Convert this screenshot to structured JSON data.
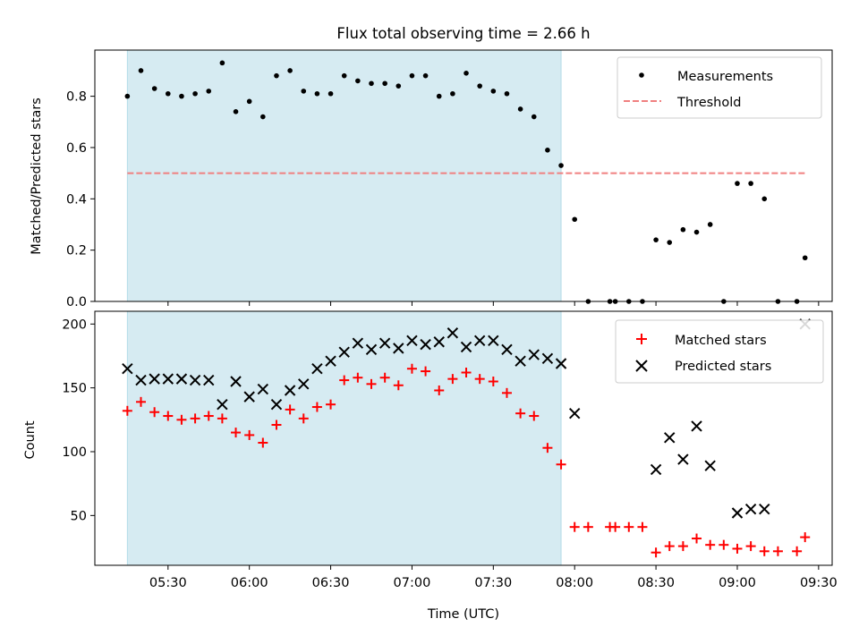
{
  "chart_data": [
    {
      "type": "scatter",
      "title": "Flux total observing time = 2.66 h",
      "xlabel": "",
      "ylabel": "Matched/Predicted stars",
      "ylim": [
        0,
        0.98
      ],
      "yticks": [
        0.0,
        0.2,
        0.4,
        0.6,
        0.8
      ],
      "ytick_labels": [
        "0.0",
        "0.2",
        "0.4",
        "0.6",
        "0.8"
      ],
      "shaded_span": {
        "start": "05:15",
        "end": "07:55",
        "color": "#add8e6"
      },
      "legend_position": "top-right",
      "series": [
        {
          "name": "Measurements",
          "marker": "dot",
          "color": "#000000",
          "x": [
            "05:15",
            "05:20",
            "05:25",
            "05:30",
            "05:35",
            "05:40",
            "05:45",
            "05:50",
            "05:55",
            "06:00",
            "06:05",
            "06:10",
            "06:15",
            "06:20",
            "06:25",
            "06:30",
            "06:35",
            "06:40",
            "06:45",
            "06:50",
            "06:55",
            "07:00",
            "07:05",
            "07:10",
            "07:15",
            "07:20",
            "07:25",
            "07:30",
            "07:35",
            "07:40",
            "07:45",
            "07:50",
            "07:55",
            "08:00",
            "08:05",
            "08:13",
            "08:15",
            "08:20",
            "08:25",
            "08:30",
            "08:35",
            "08:40",
            "08:45",
            "08:50",
            "08:55",
            "09:00",
            "09:05",
            "09:10",
            "09:15",
            "09:22",
            "09:25"
          ],
          "y": [
            0.8,
            0.9,
            0.83,
            0.81,
            0.8,
            0.81,
            0.82,
            0.93,
            0.74,
            0.78,
            0.72,
            0.88,
            0.9,
            0.82,
            0.81,
            0.81,
            0.88,
            0.86,
            0.85,
            0.85,
            0.84,
            0.88,
            0.88,
            0.8,
            0.81,
            0.89,
            0.84,
            0.82,
            0.81,
            0.75,
            0.72,
            0.59,
            0.53,
            0.32,
            0.0,
            0.0,
            0.0,
            0.0,
            0.0,
            0.24,
            0.23,
            0.28,
            0.27,
            0.3,
            0.0,
            0.46,
            0.46,
            0.4,
            0.0,
            0.0,
            0.17
          ]
        },
        {
          "name": "Threshold",
          "marker": "dashed-line",
          "color": "#f08080",
          "x": [
            "05:15",
            "09:25"
          ],
          "y": [
            0.5,
            0.5
          ]
        }
      ]
    },
    {
      "type": "scatter",
      "title": "",
      "xlabel": "Time (UTC)",
      "ylabel": "Count",
      "ylim": [
        11,
        210
      ],
      "yticks": [
        50,
        100,
        150,
        200
      ],
      "ytick_labels": [
        "50",
        "100",
        "150",
        "200"
      ],
      "xlim": [
        "05:03",
        "09:35"
      ],
      "xticks": [
        "05:30",
        "06:00",
        "06:30",
        "07:00",
        "07:30",
        "08:00",
        "08:30",
        "09:00",
        "09:30"
      ],
      "shaded_span": {
        "start": "05:15",
        "end": "07:55",
        "color": "#add8e6"
      },
      "legend_position": "top-right",
      "series": [
        {
          "name": "Matched stars",
          "marker": "plus",
          "color": "#ff0000",
          "x": [
            "05:15",
            "05:20",
            "05:25",
            "05:30",
            "05:35",
            "05:40",
            "05:45",
            "05:50",
            "05:55",
            "06:00",
            "06:05",
            "06:10",
            "06:15",
            "06:20",
            "06:25",
            "06:30",
            "06:35",
            "06:40",
            "06:45",
            "06:50",
            "06:55",
            "07:00",
            "07:05",
            "07:10",
            "07:15",
            "07:20",
            "07:25",
            "07:30",
            "07:35",
            "07:40",
            "07:45",
            "07:50",
            "07:55",
            "08:00",
            "08:05",
            "08:13",
            "08:15",
            "08:20",
            "08:25",
            "08:30",
            "08:35",
            "08:40",
            "08:45",
            "08:50",
            "08:55",
            "09:00",
            "09:05",
            "09:10",
            "09:15",
            "09:22",
            "09:25"
          ],
          "y": [
            132,
            139,
            131,
            128,
            125,
            126,
            128,
            126,
            115,
            113,
            107,
            121,
            133,
            126,
            135,
            137,
            156,
            158,
            153,
            158,
            152,
            165,
            163,
            148,
            157,
            162,
            157,
            155,
            146,
            130,
            128,
            103,
            90,
            41,
            41,
            41,
            41,
            41,
            41,
            21,
            26,
            26,
            32,
            27,
            27,
            24,
            26,
            22,
            22,
            22,
            33
          ]
        },
        {
          "name": "Predicted stars",
          "marker": "x",
          "color": "#000000",
          "x": [
            "05:15",
            "05:20",
            "05:25",
            "05:30",
            "05:35",
            "05:40",
            "05:45",
            "05:50",
            "05:55",
            "06:00",
            "06:05",
            "06:10",
            "06:15",
            "06:20",
            "06:25",
            "06:30",
            "06:35",
            "06:40",
            "06:45",
            "06:50",
            "06:55",
            "07:00",
            "07:05",
            "07:10",
            "07:15",
            "07:20",
            "07:25",
            "07:30",
            "07:35",
            "07:40",
            "07:45",
            "07:50",
            "07:55",
            "08:00",
            "08:30",
            "08:35",
            "08:40",
            "08:45",
            "08:50",
            "09:00",
            "09:05",
            "09:10",
            "09:25"
          ],
          "y": [
            165,
            156,
            157,
            157,
            157,
            156,
            156,
            137,
            155,
            143,
            149,
            137,
            148,
            153,
            165,
            171,
            178,
            185,
            180,
            185,
            181,
            187,
            184,
            186,
            193,
            182,
            187,
            187,
            180,
            171,
            176,
            173,
            169,
            130,
            86,
            111,
            94,
            120,
            89,
            52,
            55,
            55,
            200
          ]
        }
      ]
    }
  ]
}
